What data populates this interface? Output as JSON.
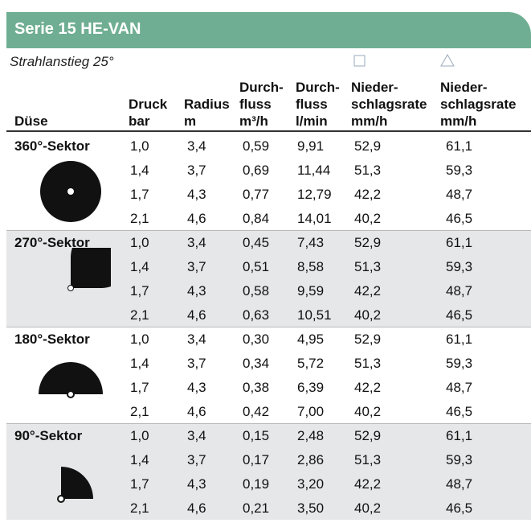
{
  "header": {
    "title": "Serie 15 HE-VAN",
    "subtitle": "Strahlanstieg 25°"
  },
  "table": {
    "columns": [
      [
        "Düse"
      ],
      [
        "Druck",
        "bar"
      ],
      [
        "Radius",
        "m"
      ],
      [
        "Durch-",
        "fluss",
        "m³/h"
      ],
      [
        "Durch-",
        "fluss",
        "l/min"
      ],
      [
        "Nieder-",
        "schlagsrate",
        "mm/h"
      ],
      [
        "Nieder-",
        "schlagsrate",
        "mm/h"
      ]
    ],
    "groups": [
      {
        "label": "360°-Sektor",
        "rows": [
          [
            "1,0",
            "3,4",
            "0,59",
            "9,91",
            "52,9",
            "61,1"
          ],
          [
            "1,4",
            "3,7",
            "0,69",
            "11,44",
            "51,3",
            "59,3"
          ],
          [
            "1,7",
            "4,3",
            "0,77",
            "12,79",
            "42,2",
            "48,7"
          ],
          [
            "2,1",
            "4,6",
            "0,84",
            "14,01",
            "40,2",
            "46,5"
          ]
        ]
      },
      {
        "label": "270°-Sektor",
        "rows": [
          [
            "1,0",
            "3,4",
            "0,45",
            "7,43",
            "52,9",
            "61,1"
          ],
          [
            "1,4",
            "3,7",
            "0,51",
            "8,58",
            "51,3",
            "59,3"
          ],
          [
            "1,7",
            "4,3",
            "0,58",
            "9,59",
            "42,2",
            "48,7"
          ],
          [
            "2,1",
            "4,6",
            "0,63",
            "10,51",
            "40,2",
            "46,5"
          ]
        ]
      },
      {
        "label": "180°-Sektor",
        "rows": [
          [
            "1,0",
            "3,4",
            "0,30",
            "4,95",
            "52,9",
            "61,1"
          ],
          [
            "1,4",
            "3,7",
            "0,34",
            "5,72",
            "51,3",
            "59,3"
          ],
          [
            "1,7",
            "4,3",
            "0,38",
            "6,39",
            "42,2",
            "48,7"
          ],
          [
            "2,1",
            "4,6",
            "0,42",
            "7,00",
            "40,2",
            "46,5"
          ]
        ]
      },
      {
        "label": "90°-Sektor",
        "rows": [
          [
            "1,0",
            "3,4",
            "0,15",
            "2,48",
            "52,9",
            "61,1"
          ],
          [
            "1,4",
            "3,7",
            "0,17",
            "2,86",
            "51,3",
            "59,3"
          ],
          [
            "1,7",
            "4,3",
            "0,19",
            "3,20",
            "42,2",
            "48,7"
          ],
          [
            "2,1",
            "4,6",
            "0,21",
            "3,50",
            "40,2",
            "46,5"
          ]
        ]
      }
    ]
  }
}
